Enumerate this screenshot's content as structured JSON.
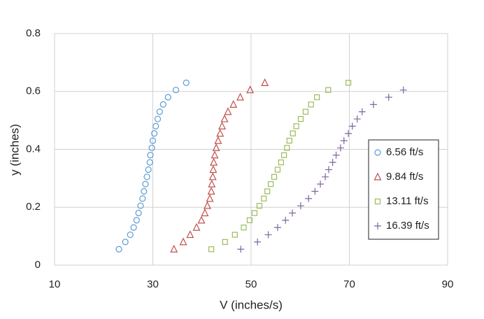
{
  "chart_data": {
    "type": "scatter",
    "xlabel": "V (inches/s)",
    "ylabel": "y (inches)",
    "xlim": [
      10,
      90
    ],
    "xticks": [
      10,
      30,
      50,
      70,
      90
    ],
    "ylim": [
      0,
      0.8
    ],
    "yticks": [
      0,
      0.2,
      0.4,
      0.6,
      0.8
    ],
    "grid": true,
    "legend": "right",
    "series": [
      {
        "name": "6.56 ft/s",
        "color": "#5b9bd5",
        "marker": "circle",
        "x": [
          23.1,
          24.4,
          25.4,
          26.1,
          26.7,
          27.1,
          27.5,
          27.9,
          28.2,
          28.5,
          28.8,
          29.1,
          29.4,
          29.5,
          29.8,
          30.0,
          30.3,
          30.6,
          31.0,
          31.4,
          32.1,
          33.1,
          34.7,
          36.8
        ],
        "values": [
          0.055,
          0.08,
          0.105,
          0.13,
          0.155,
          0.18,
          0.205,
          0.23,
          0.255,
          0.28,
          0.305,
          0.33,
          0.355,
          0.38,
          0.405,
          0.43,
          0.455,
          0.48,
          0.505,
          0.53,
          0.555,
          0.58,
          0.605,
          0.63
        ]
      },
      {
        "name": "9.84 ft/s",
        "color": "#c0504d",
        "marker": "triangle",
        "x": [
          34.3,
          36.2,
          37.6,
          38.9,
          39.9,
          40.6,
          41.1,
          41.6,
          41.9,
          42.0,
          42.2,
          42.3,
          42.4,
          42.6,
          42.9,
          43.3,
          43.7,
          44.1,
          44.6,
          45.3,
          46.4,
          47.8,
          49.8,
          52.8
        ],
        "values": [
          0.055,
          0.08,
          0.105,
          0.13,
          0.155,
          0.18,
          0.205,
          0.23,
          0.255,
          0.28,
          0.305,
          0.33,
          0.355,
          0.38,
          0.405,
          0.43,
          0.455,
          0.48,
          0.505,
          0.53,
          0.555,
          0.58,
          0.605,
          0.63
        ]
      },
      {
        "name": "13.11 ft/s",
        "color": "#9bbb59",
        "marker": "square",
        "x": [
          41.9,
          44.7,
          46.7,
          48.5,
          49.7,
          50.7,
          51.7,
          52.6,
          53.3,
          54.0,
          54.7,
          55.4,
          56.1,
          56.7,
          57.3,
          57.8,
          58.5,
          59.2,
          60.1,
          61.1,
          62.2,
          63.4,
          65.7,
          69.8
        ],
        "values": [
          0.055,
          0.08,
          0.105,
          0.13,
          0.155,
          0.18,
          0.205,
          0.23,
          0.255,
          0.28,
          0.305,
          0.33,
          0.355,
          0.38,
          0.405,
          0.43,
          0.455,
          0.48,
          0.505,
          0.53,
          0.555,
          0.58,
          0.605,
          0.63
        ]
      },
      {
        "name": "16.39 ft/s",
        "color": "#8064a2",
        "marker": "plus",
        "x": [
          47.9,
          51.3,
          53.5,
          55.4,
          57.0,
          58.4,
          60.1,
          61.7,
          63.0,
          64.1,
          65.1,
          65.8,
          66.6,
          67.3,
          68.2,
          68.9,
          69.8,
          70.6,
          71.6,
          72.6,
          74.9,
          78.0,
          81.0
        ],
        "values": [
          0.055,
          0.08,
          0.105,
          0.13,
          0.155,
          0.18,
          0.205,
          0.23,
          0.255,
          0.28,
          0.305,
          0.33,
          0.355,
          0.38,
          0.405,
          0.43,
          0.455,
          0.48,
          0.505,
          0.53,
          0.555,
          0.58,
          0.605
        ]
      }
    ]
  }
}
